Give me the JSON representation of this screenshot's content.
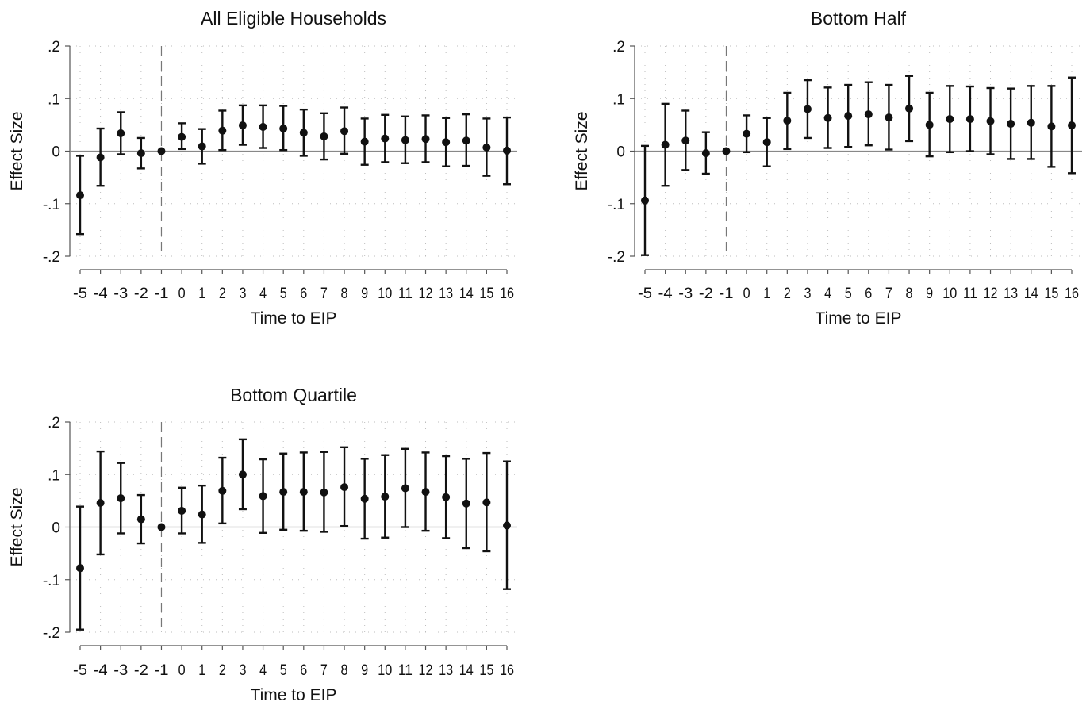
{
  "chart_data": [
    {
      "type": "scatter",
      "title": "All Eligible Households",
      "xlabel": "Time to EIP",
      "ylabel": "Effect Size",
      "x": [
        -5,
        -4,
        -3,
        -2,
        -1,
        0,
        1,
        2,
        3,
        4,
        5,
        6,
        7,
        8,
        9,
        10,
        11,
        12,
        13,
        14,
        15,
        16
      ],
      "x_tick_labels": [
        "-5",
        "-4",
        "-3",
        "-2",
        "-1",
        "0",
        "1",
        "2",
        "3",
        "4",
        "5",
        "6",
        "7",
        "8",
        "9",
        "10",
        "11",
        "12",
        "13",
        "14",
        "15",
        "16"
      ],
      "y_tick_labels": [
        ".2",
        ".1",
        "0",
        "-.1",
        "-.2"
      ],
      "yticks": [
        0.2,
        0.1,
        0,
        -0.1,
        -0.2
      ],
      "ylim": [
        -0.2,
        0.2
      ],
      "grid": true,
      "reference_line_x": -1,
      "series": [
        {
          "estimate": [
            -0.084,
            -0.012,
            0.034,
            -0.004,
            0.0,
            0.027,
            0.009,
            0.039,
            0.049,
            0.046,
            0.043,
            0.035,
            0.028,
            0.038,
            0.018,
            0.024,
            0.021,
            0.023,
            0.017,
            0.02,
            0.007,
            0.001
          ],
          "ci_low": [
            -0.158,
            -0.066,
            -0.006,
            -0.033,
            0.0,
            0.004,
            -0.024,
            0.002,
            0.012,
            0.006,
            0.002,
            -0.009,
            -0.016,
            -0.005,
            -0.026,
            -0.021,
            -0.023,
            -0.021,
            -0.029,
            -0.028,
            -0.047,
            -0.063
          ],
          "ci_high": [
            -0.009,
            0.043,
            0.074,
            0.025,
            0.0,
            0.053,
            0.042,
            0.077,
            0.087,
            0.087,
            0.086,
            0.079,
            0.072,
            0.083,
            0.062,
            0.069,
            0.066,
            0.068,
            0.063,
            0.07,
            0.062,
            0.064
          ]
        }
      ]
    },
    {
      "type": "scatter",
      "title": "Bottom Half",
      "xlabel": "Time to EIP",
      "ylabel": "Effect Size",
      "x": [
        -5,
        -4,
        -3,
        -2,
        -1,
        0,
        1,
        2,
        3,
        4,
        5,
        6,
        7,
        8,
        9,
        10,
        11,
        12,
        13,
        14,
        15,
        16
      ],
      "x_tick_labels": [
        "-5",
        "-4",
        "-3",
        "-2",
        "-1",
        "0",
        "1",
        "2",
        "3",
        "4",
        "5",
        "6",
        "7",
        "8",
        "9",
        "10",
        "11",
        "12",
        "13",
        "14",
        "15",
        "16"
      ],
      "y_tick_labels": [
        ".2",
        ".1",
        "0",
        "-.1",
        "-.2"
      ],
      "yticks": [
        0.2,
        0.1,
        0,
        -0.1,
        -0.2
      ],
      "ylim": [
        -0.2,
        0.2
      ],
      "grid": true,
      "reference_line_x": -1,
      "series": [
        {
          "estimate": [
            -0.094,
            0.012,
            0.02,
            -0.004,
            0.0,
            0.033,
            0.017,
            0.058,
            0.08,
            0.063,
            0.067,
            0.07,
            0.064,
            0.081,
            0.05,
            0.061,
            0.061,
            0.057,
            0.052,
            0.054,
            0.047,
            0.049
          ],
          "ci_low": [
            -0.198,
            -0.066,
            -0.036,
            -0.043,
            0.0,
            -0.002,
            -0.029,
            0.004,
            0.025,
            0.006,
            0.008,
            0.011,
            0.003,
            0.019,
            -0.01,
            -0.002,
            0.0,
            -0.006,
            -0.015,
            -0.015,
            -0.03,
            -0.042
          ],
          "ci_high": [
            0.01,
            0.09,
            0.077,
            0.036,
            0.0,
            0.068,
            0.063,
            0.111,
            0.135,
            0.121,
            0.126,
            0.131,
            0.126,
            0.143,
            0.111,
            0.124,
            0.123,
            0.12,
            0.119,
            0.124,
            0.124,
            0.14
          ]
        }
      ]
    },
    {
      "type": "scatter",
      "title": "Bottom Quartile",
      "xlabel": "Time to EIP",
      "ylabel": "Effect Size",
      "x": [
        -5,
        -4,
        -3,
        -2,
        -1,
        0,
        1,
        2,
        3,
        4,
        5,
        6,
        7,
        8,
        9,
        10,
        11,
        12,
        13,
        14,
        15,
        16
      ],
      "x_tick_labels": [
        "-5",
        "-4",
        "-3",
        "-2",
        "-1",
        "0",
        "1",
        "2",
        "3",
        "4",
        "5",
        "6",
        "7",
        "8",
        "9",
        "10",
        "11",
        "12",
        "13",
        "14",
        "15",
        "16"
      ],
      "y_tick_labels": [
        ".2",
        ".1",
        "0",
        "-.1",
        "-.2"
      ],
      "yticks": [
        0.2,
        0.1,
        0,
        -0.1,
        -0.2
      ],
      "ylim": [
        -0.2,
        0.2
      ],
      "grid": true,
      "reference_line_x": -1,
      "series": [
        {
          "estimate": [
            -0.078,
            0.046,
            0.055,
            0.015,
            0.0,
            0.031,
            0.024,
            0.069,
            0.1,
            0.059,
            0.067,
            0.067,
            0.066,
            0.076,
            0.054,
            0.058,
            0.074,
            0.067,
            0.057,
            0.045,
            0.047,
            0.003
          ],
          "ci_low": [
            -0.195,
            -0.052,
            -0.012,
            -0.031,
            0.0,
            -0.012,
            -0.03,
            0.007,
            0.034,
            -0.011,
            -0.005,
            -0.007,
            -0.009,
            0.002,
            -0.022,
            -0.02,
            0.0,
            -0.007,
            -0.021,
            -0.04,
            -0.046,
            -0.118
          ],
          "ci_high": [
            0.039,
            0.144,
            0.122,
            0.061,
            0.0,
            0.075,
            0.079,
            0.132,
            0.167,
            0.129,
            0.14,
            0.142,
            0.143,
            0.152,
            0.13,
            0.137,
            0.149,
            0.142,
            0.135,
            0.13,
            0.141,
            0.125
          ]
        }
      ]
    }
  ]
}
